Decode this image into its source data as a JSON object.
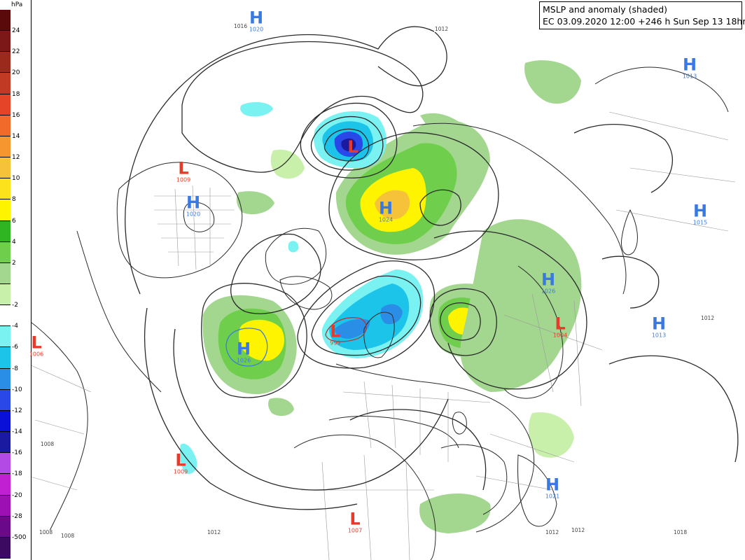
{
  "title": {
    "line1": "MSLP and anomaly (shaded)",
    "line2": "EC 03.09.2020 12:00 +246 h Sun Sep 13 18hrs"
  },
  "colorbar": {
    "unit": "hPa",
    "levels": [
      {
        "label": "24",
        "color": "#5a0a0a"
      },
      {
        "label": "22",
        "color": "#7d1818"
      },
      {
        "label": "20",
        "color": "#9c2a1c"
      },
      {
        "label": "18",
        "color": "#c03a24"
      },
      {
        "label": "16",
        "color": "#e64428"
      },
      {
        "label": "14",
        "color": "#f26a2a"
      },
      {
        "label": "12",
        "color": "#f5962e"
      },
      {
        "label": "10",
        "color": "#f6c23a"
      },
      {
        "label": "8",
        "color": "#fbe21c"
      },
      {
        "label": "6",
        "color": "#fff400"
      },
      {
        "label": "4",
        "color": "#2fb422"
      },
      {
        "label": "2",
        "color": "#6fcf4c"
      },
      {
        "label": "",
        "color": "#a3d790"
      },
      {
        "label": "-2",
        "color": "#c9f0aa"
      },
      {
        "label": "-4",
        "color": "#ffffff"
      },
      {
        "label": "-6",
        "color": "#7af2f2"
      },
      {
        "label": "-8",
        "color": "#1dc4ea"
      },
      {
        "label": "-10",
        "color": "#2a8ee6"
      },
      {
        "label": "-12",
        "color": "#2a48e8"
      },
      {
        "label": "-14",
        "color": "#0a10d8"
      },
      {
        "label": "-16",
        "color": "#1a1aa0"
      },
      {
        "label": "-18",
        "color": "#b44ae6"
      },
      {
        "label": "-20",
        "color": "#c020d2"
      },
      {
        "label": "-28",
        "color": "#9c10b4"
      },
      {
        "label": "-500",
        "color": "#6a0a8a"
      },
      {
        "label": "",
        "color": "#3c0a60"
      }
    ]
  },
  "systems": [
    {
      "type": "H",
      "letter": "H",
      "value": "1020",
      "name": "high-greenland"
    },
    {
      "type": "L",
      "letter": "L",
      "value": "",
      "name": "low-kara-sea"
    },
    {
      "type": "H",
      "letter": "H",
      "value": "1013",
      "name": "high-ne-atlantic"
    },
    {
      "type": "L",
      "letter": "L",
      "value": "1009",
      "name": "low-scandinavia"
    },
    {
      "type": "H",
      "letter": "H",
      "value": "1020",
      "name": "high-iceland"
    },
    {
      "type": "H",
      "letter": "H",
      "value": "1024",
      "name": "high-west-siberia"
    },
    {
      "type": "H",
      "letter": "H",
      "value": "1015",
      "name": "high-uk"
    },
    {
      "type": "H",
      "letter": "H",
      "value": "1026",
      "name": "high-mongolia"
    },
    {
      "type": "L",
      "letter": "L",
      "value": "999",
      "name": "low-beaufort"
    },
    {
      "type": "H",
      "letter": "H",
      "value": "1013",
      "name": "high-mediterranean"
    },
    {
      "type": "L",
      "letter": "L",
      "value": "1004",
      "name": "low-gulf-alaska"
    },
    {
      "type": "L",
      "letter": "L",
      "value": "1006",
      "name": "low-pacific-west"
    },
    {
      "type": "H",
      "letter": "H",
      "value": "1026",
      "name": "high-pacific"
    },
    {
      "type": "L",
      "letter": "L",
      "value": "1009",
      "name": "low-tibet"
    },
    {
      "type": "H",
      "letter": "H",
      "value": "1021",
      "name": "high-atlantic-south"
    },
    {
      "type": "L",
      "letter": "L",
      "value": "1007",
      "name": "low-india"
    }
  ],
  "isobar_labels": [
    "1016",
    "1012",
    "1008",
    "1008",
    "1008",
    "1012",
    "1012",
    "1012",
    "1018",
    "1012"
  ]
}
